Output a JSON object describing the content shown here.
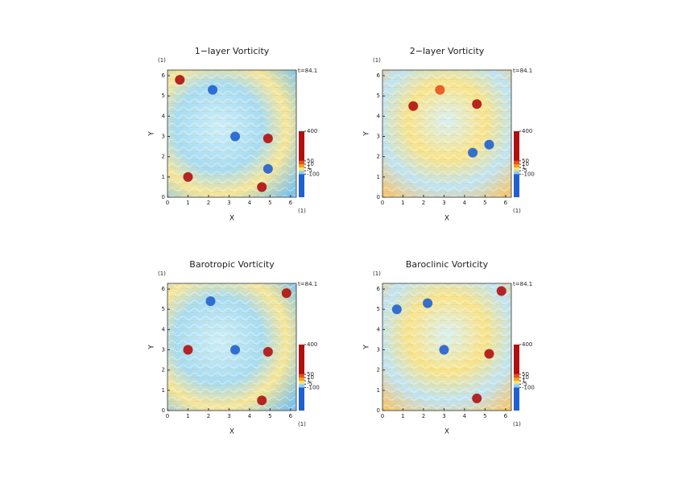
{
  "chart_data": [
    {
      "type": "heatmap",
      "title": "1−layer Vorticity",
      "xlabel": "X",
      "ylabel": "Y",
      "xunit": "(1)",
      "yunit": "(1)",
      "time_label": "t=84.1",
      "xlim": [
        0,
        6.28
      ],
      "ylim": [
        0,
        6.28
      ],
      "xticks": [
        0,
        1,
        2,
        3,
        4,
        5,
        6
      ],
      "yticks": [
        0,
        1,
        2,
        3,
        4,
        5,
        6
      ],
      "colorbar": {
        "ticks": [
          400,
          50,
          10,
          1,
          -5,
          -100
        ],
        "colors": [
          "#b01010",
          "#e8501a",
          "#f0a020",
          "#f8e070",
          "#8ad0f0",
          "#2060d0"
        ]
      },
      "vortices": {
        "x": [
          2.2,
          3.3,
          4.9,
          4.6,
          4.9,
          0.6,
          1.0
        ],
        "y": [
          5.3,
          3.0,
          1.4,
          0.5,
          2.9,
          5.8,
          1.0
        ],
        "values": [
          -100,
          -100,
          -100,
          400,
          400,
          400,
          400
        ]
      }
    },
    {
      "type": "heatmap",
      "title": "2−layer Vorticity",
      "xlabel": "X",
      "ylabel": "Y",
      "xunit": "(1)",
      "yunit": "(1)",
      "time_label": "t=84.1",
      "xlim": [
        0,
        6.28
      ],
      "ylim": [
        0,
        6.28
      ],
      "xticks": [
        0,
        1,
        2,
        3,
        4,
        5,
        6
      ],
      "yticks": [
        0,
        1,
        2,
        3,
        4,
        5,
        6
      ],
      "colorbar": {
        "ticks": [
          400,
          50,
          10,
          1,
          -5,
          -100
        ],
        "colors": [
          "#b01010",
          "#e8501a",
          "#f0a020",
          "#f8e070",
          "#8ad0f0",
          "#2060d0"
        ]
      },
      "vortices": {
        "x": [
          4.6,
          5.2,
          4.4,
          1.5,
          2.8
        ],
        "y": [
          4.6,
          2.6,
          2.2,
          4.5,
          5.3
        ],
        "values": [
          400,
          -100,
          -100,
          400,
          50
        ]
      }
    },
    {
      "type": "heatmap",
      "title": "Barotropic Vorticity",
      "xlabel": "X",
      "ylabel": "Y",
      "xunit": "(1)",
      "yunit": "(1)",
      "time_label": "t=84.1",
      "xlim": [
        0,
        6.28
      ],
      "ylim": [
        0,
        6.28
      ],
      "xticks": [
        0,
        1,
        2,
        3,
        4,
        5,
        6
      ],
      "yticks": [
        0,
        1,
        2,
        3,
        4,
        5,
        6
      ],
      "colorbar": {
        "ticks": [
          400,
          50,
          10,
          1,
          -5,
          -100
        ],
        "colors": [
          "#b01010",
          "#e8501a",
          "#f0a020",
          "#f8e070",
          "#8ad0f0",
          "#2060d0"
        ]
      },
      "vortices": {
        "x": [
          2.1,
          3.3,
          4.6,
          1.0,
          5.8,
          4.9
        ],
        "y": [
          5.4,
          3.0,
          0.5,
          3.0,
          5.8,
          2.9
        ],
        "values": [
          -100,
          -100,
          400,
          400,
          400,
          400
        ]
      }
    },
    {
      "type": "heatmap",
      "title": "Baroclinic Vorticity",
      "xlabel": "X",
      "ylabel": "Y",
      "xunit": "(1)",
      "yunit": "(1)",
      "time_label": "t=84.1",
      "xlim": [
        0,
        6.28
      ],
      "ylim": [
        0,
        6.28
      ],
      "xticks": [
        0,
        1,
        2,
        3,
        4,
        5,
        6
      ],
      "yticks": [
        0,
        1,
        2,
        3,
        4,
        5,
        6
      ],
      "colorbar": {
        "ticks": [
          400,
          50,
          10,
          1,
          -5,
          -100
        ],
        "colors": [
          "#b01010",
          "#e8501a",
          "#f0a020",
          "#f8e070",
          "#8ad0f0",
          "#2060d0"
        ]
      },
      "vortices": {
        "x": [
          2.2,
          3.0,
          4.6,
          5.8,
          5.2,
          0.7
        ],
        "y": [
          5.3,
          3.0,
          0.6,
          5.9,
          2.8,
          5.0
        ],
        "values": [
          -100,
          -100,
          400,
          400,
          400,
          -100
        ]
      }
    }
  ]
}
